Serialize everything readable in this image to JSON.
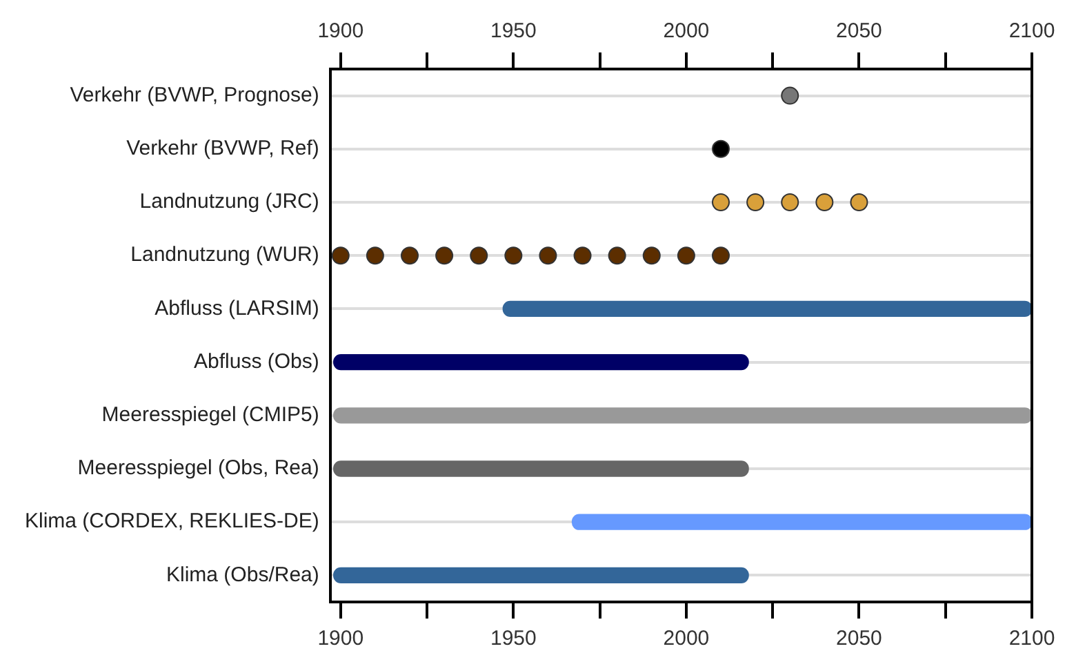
{
  "chart_data": {
    "type": "bar",
    "orientation": "horizontal",
    "categories": [
      "Verkehr (BVWP, Prognose)",
      "Verkehr (BVWP, Ref)",
      "Landnutzung (JRC)",
      "Landnutzung (WUR)",
      "Abfluss (LARSIM)",
      "Abfluss (Obs)",
      "Meeresspiegel (CMIP5)",
      "Meeresspiegel (Obs, Rea)",
      "Klima (CORDEX, REKLIES-DE)",
      "Klima (Obs/Rea)"
    ],
    "series": [
      {
        "values": [
          null,
          null,
          null,
          null,
          153,
          120,
          202,
          120,
          133,
          120
        ],
        "base": [
          null,
          null,
          null,
          null,
          1947,
          1898,
          1898,
          1898,
          1967,
          1898
        ],
        "colors": [
          null,
          null,
          null,
          null,
          "#336699",
          "#000066",
          "#999999",
          "#666666",
          "#6699ff",
          "#336699"
        ]
      },
      {
        "type": "scatter",
        "color": "#777777",
        "x": [
          "Verkehr (BVWP, Prognose)"
        ],
        "values": [
          2030
        ]
      },
      {
        "type": "scatter",
        "color": "#000000",
        "x": [
          "Verkehr (BVWP, Ref)"
        ],
        "values": [
          2010
        ]
      },
      {
        "type": "scatter",
        "color": "#d9a03a",
        "x": [
          "Landnutzung (JRC)",
          "Landnutzung (JRC)",
          "Landnutzung (JRC)",
          "Landnutzung (JRC)",
          "Landnutzung (JRC)"
        ],
        "values": [
          2010,
          2020,
          2030,
          2040,
          2050
        ]
      },
      {
        "type": "scatter",
        "color": "#5c2e00",
        "x": [
          "Landnutzung (WUR)",
          "Landnutzung (WUR)",
          "Landnutzung (WUR)",
          "Landnutzung (WUR)",
          "Landnutzung (WUR)",
          "Landnutzung (WUR)",
          "Landnutzung (WUR)",
          "Landnutzung (WUR)",
          "Landnutzung (WUR)",
          "Landnutzung (WUR)",
          "Landnutzung (WUR)",
          "Landnutzung (WUR)"
        ],
        "values": [
          1900,
          1910,
          1920,
          1930,
          1940,
          1950,
          1960,
          1970,
          1980,
          1990,
          2000,
          2010
        ]
      }
    ],
    "xlim": [
      1897,
      2100
    ],
    "xticks": [
      1900,
      {
        "value": 1925,
        "label": null
      },
      1950,
      {
        "value": 1975,
        "label": null
      },
      2000,
      {
        "value": 2025,
        "label": null
      },
      2050,
      {
        "value": 2075,
        "label": null
      },
      2100
    ],
    "x2lim": [
      1897,
      2100
    ],
    "x2ticks": [
      1900,
      {
        "value": 1925,
        "label": null
      },
      1950,
      {
        "value": 1975,
        "label": null
      },
      2000,
      {
        "value": 2025,
        "label": null
      },
      2050,
      {
        "value": 2075,
        "label": null
      },
      2100
    ],
    "grid": "y",
    "legend": false,
    "marker": "circle"
  }
}
